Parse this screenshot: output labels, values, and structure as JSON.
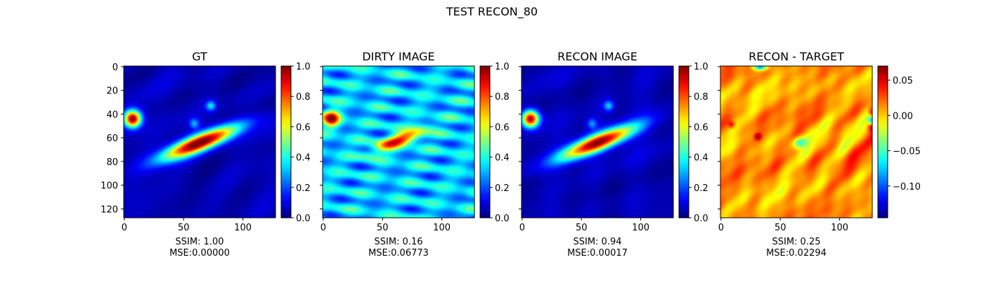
{
  "figure_title": "TEST RECON_80",
  "colormap": "jet",
  "chart_data": [
    {
      "type": "heatmap",
      "title": "GT",
      "xlabel_lines": [
        "SSIM: 1.00",
        "MSE:0.00000"
      ],
      "image_size": 128,
      "x_ticks": [
        0,
        50,
        100
      ],
      "y_ticks": [
        0,
        20,
        40,
        60,
        80,
        100,
        120
      ],
      "show_y_ticklabels": true,
      "colorbar": {
        "min": 0.0,
        "max": 1.0,
        "ticks": [
          0.0,
          0.2,
          0.4,
          0.6,
          0.8,
          1.0
        ],
        "tick_labels": [
          "0.0",
          "0.2",
          "0.4",
          "0.6",
          "0.8",
          "1.0"
        ]
      },
      "background": 0.05,
      "features": [
        {
          "label": "left source",
          "x": 7,
          "y": 44,
          "sx": 5,
          "sy": 5,
          "angle": 0,
          "amp": 0.95
        },
        {
          "label": "elongated source",
          "x": 64,
          "y": 64,
          "sx": 24,
          "sy": 5,
          "angle": -22,
          "amp": 1.0
        },
        {
          "label": "small source",
          "x": 73,
          "y": 33,
          "sx": 3,
          "sy": 3,
          "angle": 0,
          "amp": 0.3
        },
        {
          "label": "small source 2",
          "x": 59,
          "y": 48,
          "sx": 3,
          "sy": 3,
          "angle": 0,
          "amp": 0.25
        }
      ]
    },
    {
      "type": "heatmap",
      "title": "DIRTY IMAGE",
      "xlabel_lines": [
        "SSIM: 0.16",
        "MSE:0.06773"
      ],
      "image_size": 128,
      "x_ticks": [
        0,
        50,
        100
      ],
      "y_ticks": [
        0,
        20,
        40,
        60,
        80,
        100,
        120
      ],
      "show_y_ticklabels": false,
      "colorbar": {
        "min": 0.0,
        "max": 1.0,
        "ticks": [
          0.0,
          0.2,
          0.4,
          0.6,
          0.8,
          1.0
        ],
        "tick_labels": [
          "0.0",
          "0.2",
          "0.4",
          "0.6",
          "0.8",
          "1.0"
        ]
      },
      "background": 0.32,
      "features": [
        {
          "label": "left source",
          "x": 7,
          "y": 44,
          "sx": 5,
          "sy": 5,
          "angle": 0,
          "amp": 0.6
        },
        {
          "label": "elongated source",
          "x": 64,
          "y": 62,
          "sx": 16,
          "sy": 4,
          "angle": -22,
          "amp": 0.55
        }
      ]
    },
    {
      "type": "heatmap",
      "title": "RECON IMAGE",
      "xlabel_lines": [
        "SSIM: 0.94",
        "MSE:0.00017"
      ],
      "image_size": 128,
      "x_ticks": [
        0,
        50,
        100
      ],
      "y_ticks": [
        0,
        20,
        40,
        60,
        80,
        100,
        120
      ],
      "show_y_ticklabels": false,
      "colorbar": {
        "min": 0.0,
        "max": 1.0,
        "ticks": [
          0.0,
          0.2,
          0.4,
          0.6,
          0.8,
          1.0
        ],
        "tick_labels": [
          "0.0",
          "0.2",
          "0.4",
          "0.6",
          "0.8",
          "1.0"
        ]
      },
      "background": 0.05,
      "features": [
        {
          "label": "left source",
          "x": 7,
          "y": 44,
          "sx": 5,
          "sy": 5,
          "angle": 0,
          "amp": 0.92
        },
        {
          "label": "elongated source",
          "x": 64,
          "y": 64,
          "sx": 24,
          "sy": 5,
          "angle": -22,
          "amp": 0.97
        },
        {
          "label": "small source",
          "x": 73,
          "y": 33,
          "sx": 3,
          "sy": 3,
          "angle": 0,
          "amp": 0.28
        },
        {
          "label": "small source 2",
          "x": 59,
          "y": 48,
          "sx": 3,
          "sy": 3,
          "angle": 0,
          "amp": 0.22
        }
      ]
    },
    {
      "type": "heatmap",
      "title": "RECON - TARGET",
      "xlabel_lines": [
        "SSIM: 0.25",
        "MSE:0.02294"
      ],
      "image_size": 128,
      "x_ticks": [
        0,
        50,
        100
      ],
      "y_ticks": [
        0,
        20,
        40,
        60,
        80,
        100,
        120
      ],
      "show_y_ticklabels": false,
      "colorbar": {
        "min": -0.145,
        "max": 0.07,
        "ticks": [
          -0.1,
          -0.05,
          0.0,
          0.05
        ],
        "tick_labels": [
          "−0.10",
          "−0.05",
          "0.00",
          "0.05"
        ]
      },
      "background": 0.01,
      "features": [
        {
          "label": "blue spot",
          "x": 66,
          "y": 64,
          "sx": 4,
          "sy": 3,
          "angle": -20,
          "amp": -0.06
        },
        {
          "label": "red spot",
          "x": 31,
          "y": 59,
          "sx": 2,
          "sy": 2,
          "angle": 0,
          "amp": 0.05
        },
        {
          "label": "red edge",
          "x": 127,
          "y": 40,
          "sx": 2,
          "sy": 4,
          "angle": 0,
          "amp": 0.06
        },
        {
          "label": "red edge 2",
          "x": 127,
          "y": 50,
          "sx": 2,
          "sy": 3,
          "angle": 0,
          "amp": 0.05
        },
        {
          "label": "blue edge",
          "x": 127,
          "y": 45,
          "sx": 2,
          "sy": 3,
          "angle": 0,
          "amp": -0.12
        },
        {
          "label": "blue top",
          "x": 33,
          "y": 0,
          "sx": 4,
          "sy": 2,
          "angle": 0,
          "amp": -0.1
        },
        {
          "label": "red spot 2",
          "x": 9,
          "y": 49,
          "sx": 2,
          "sy": 2,
          "angle": 0,
          "amp": 0.04
        }
      ]
    }
  ]
}
